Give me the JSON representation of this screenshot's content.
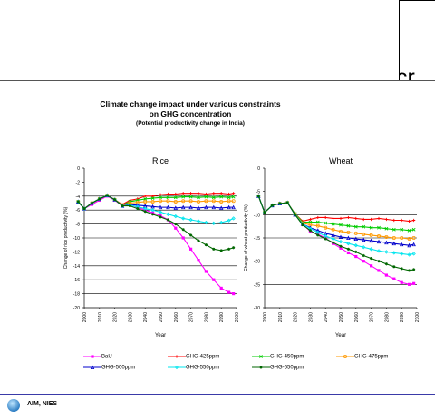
{
  "slide": {
    "title_line1": "Climate change impact under various constraints",
    "title_line2": "on GHG concentration",
    "subtitle": "(Potential productivity change in India)",
    "overlay_lines": [
      "cr",
      "c",
      "(A"
    ],
    "footer_text": "AIM, NIES"
  },
  "chart_data": [
    {
      "type": "line",
      "title": "Rice",
      "xlabel": "Year",
      "ylabel": "Change of rice productivity (%)",
      "xlim": [
        2000,
        2100
      ],
      "ylim": [
        -20,
        0
      ],
      "xticks": [
        "2000",
        "2010",
        "2020",
        "2030",
        "2040",
        "2050",
        "2060",
        "2070",
        "2080",
        "2090",
        "2100"
      ],
      "yticks": [
        "0",
        "-2",
        "-4",
        "-6",
        "-8",
        "-10",
        "-12",
        "-14",
        "-16",
        "-18",
        "-20"
      ],
      "gridlines": [
        -4,
        -6,
        -8,
        -10,
        -12,
        -14,
        -16,
        -18
      ],
      "x": [
        1996,
        2000,
        2005,
        2010,
        2015,
        2020,
        2025,
        2030,
        2035,
        2040,
        2045,
        2050,
        2055,
        2060,
        2065,
        2070,
        2075,
        2080,
        2085,
        2090,
        2095,
        2098
      ],
      "series": [
        {
          "name": "BaU",
          "color": "#ff00ff",
          "marker": "square",
          "values": [
            -4.8,
            -5.8,
            -5.2,
            -4.6,
            -4.0,
            -4.6,
            -5.4,
            -5.2,
            -5.6,
            -6.0,
            -6.4,
            -6.8,
            -7.4,
            -8.6,
            -10.0,
            -11.6,
            -13.2,
            -14.8,
            -16.0,
            -17.2,
            -17.8,
            -18.0
          ]
        },
        {
          "name": "GHG-425ppm",
          "color": "#ff0000",
          "marker": "plus",
          "values": [
            -4.8,
            -5.8,
            -5.0,
            -4.4,
            -3.9,
            -4.5,
            -5.2,
            -4.6,
            -4.4,
            -4.0,
            -4.0,
            -3.8,
            -3.7,
            -3.7,
            -3.6,
            -3.6,
            -3.6,
            -3.7,
            -3.6,
            -3.6,
            -3.7,
            -3.6
          ]
        },
        {
          "name": "GHG-450ppm",
          "color": "#00cc00",
          "marker": "x",
          "values": [
            -4.8,
            -5.8,
            -5.0,
            -4.4,
            -3.9,
            -4.5,
            -5.3,
            -4.8,
            -4.6,
            -4.4,
            -4.3,
            -4.2,
            -4.2,
            -4.2,
            -4.1,
            -4.1,
            -4.2,
            -4.1,
            -4.2,
            -4.1,
            -4.2,
            -4.1
          ]
        },
        {
          "name": "GHG-475ppm",
          "color": "#ff9900",
          "marker": "circle",
          "values": [
            -4.8,
            -5.8,
            -5.0,
            -4.4,
            -3.9,
            -4.5,
            -5.3,
            -5.0,
            -4.9,
            -4.8,
            -4.8,
            -4.7,
            -4.7,
            -4.8,
            -4.7,
            -4.7,
            -4.8,
            -4.7,
            -4.7,
            -4.8,
            -4.7,
            -4.7
          ]
        },
        {
          "name": "GHG-500ppm",
          "color": "#0000cc",
          "marker": "triangle",
          "values": [
            -4.8,
            -5.8,
            -5.0,
            -4.4,
            -3.9,
            -4.5,
            -5.4,
            -5.2,
            -5.3,
            -5.4,
            -5.5,
            -5.6,
            -5.6,
            -5.7,
            -5.6,
            -5.6,
            -5.7,
            -5.6,
            -5.6,
            -5.7,
            -5.6,
            -5.6
          ]
        },
        {
          "name": "GHG-550ppm",
          "color": "#00e5ee",
          "marker": "diamond",
          "values": [
            -4.8,
            -5.8,
            -5.0,
            -4.4,
            -3.9,
            -4.5,
            -5.4,
            -5.3,
            -5.5,
            -5.8,
            -6.0,
            -6.3,
            -6.6,
            -6.9,
            -7.2,
            -7.4,
            -7.6,
            -7.8,
            -7.9,
            -7.8,
            -7.5,
            -7.2
          ]
        },
        {
          "name": "GHG-650ppm",
          "color": "#006600",
          "marker": "asterisk",
          "values": [
            -4.8,
            -5.8,
            -5.0,
            -4.4,
            -3.9,
            -4.5,
            -5.4,
            -5.4,
            -5.8,
            -6.2,
            -6.6,
            -7.0,
            -7.4,
            -8.0,
            -8.8,
            -9.6,
            -10.4,
            -11.0,
            -11.6,
            -11.8,
            -11.6,
            -11.4
          ]
        }
      ]
    },
    {
      "type": "line",
      "title": "Wheat",
      "xlabel": "Year",
      "ylabel": "Change of wheat productivity (%)",
      "xlim": [
        2000,
        2100
      ],
      "ylim": [
        -30,
        0
      ],
      "xticks": [
        "2000",
        "2010",
        "2020",
        "2030",
        "2040",
        "2050",
        "2060",
        "2070",
        "2080",
        "2090",
        "2100"
      ],
      "yticks": [
        "0",
        "-5",
        "-10",
        "-15",
        "-20",
        "-25",
        "-30"
      ],
      "gridlines": [
        -10,
        -15,
        -20,
        -25
      ],
      "x": [
        1996,
        2000,
        2005,
        2010,
        2015,
        2020,
        2025,
        2030,
        2035,
        2040,
        2045,
        2050,
        2055,
        2060,
        2065,
        2070,
        2075,
        2080,
        2085,
        2090,
        2095,
        2098
      ],
      "series": [
        {
          "name": "BaU",
          "color": "#ff00ff",
          "marker": "square",
          "values": [
            -6.0,
            -9.5,
            -8.0,
            -7.6,
            -7.4,
            -10.0,
            -12.0,
            -13.6,
            -14.2,
            -15.0,
            -16.2,
            -17.2,
            -18.2,
            -19.0,
            -20.0,
            -21.0,
            -22.0,
            -23.0,
            -23.8,
            -24.6,
            -25.0,
            -24.8
          ]
        },
        {
          "name": "GHG-425ppm",
          "color": "#ff0000",
          "marker": "plus",
          "values": [
            -6.0,
            -9.5,
            -8.0,
            -7.6,
            -7.4,
            -9.8,
            -11.4,
            -11.0,
            -10.6,
            -10.6,
            -10.8,
            -10.8,
            -10.6,
            -10.8,
            -11.0,
            -11.0,
            -10.8,
            -11.0,
            -11.2,
            -11.2,
            -11.4,
            -11.2
          ]
        },
        {
          "name": "GHG-450ppm",
          "color": "#00cc00",
          "marker": "x",
          "values": [
            -6.0,
            -9.5,
            -8.0,
            -7.6,
            -7.4,
            -9.8,
            -11.6,
            -11.6,
            -11.6,
            -11.8,
            -12.0,
            -12.2,
            -12.4,
            -12.6,
            -12.6,
            -12.8,
            -12.8,
            -13.0,
            -13.2,
            -13.2,
            -13.4,
            -13.2
          ]
        },
        {
          "name": "GHG-475ppm",
          "color": "#ff9900",
          "marker": "circle",
          "values": [
            -6.0,
            -9.5,
            -8.0,
            -7.6,
            -7.4,
            -9.9,
            -11.8,
            -12.2,
            -12.4,
            -12.8,
            -13.2,
            -13.6,
            -13.8,
            -14.0,
            -14.2,
            -14.4,
            -14.6,
            -14.8,
            -15.0,
            -15.0,
            -15.2,
            -15.0
          ]
        },
        {
          "name": "GHG-500ppm",
          "color": "#0000cc",
          "marker": "triangle",
          "values": [
            -6.0,
            -9.5,
            -8.0,
            -7.6,
            -7.4,
            -10.0,
            -12.0,
            -12.8,
            -13.4,
            -14.0,
            -14.4,
            -14.8,
            -15.0,
            -15.2,
            -15.4,
            -15.6,
            -15.8,
            -16.0,
            -16.2,
            -16.4,
            -16.6,
            -16.4
          ]
        },
        {
          "name": "GHG-550ppm",
          "color": "#00e5ee",
          "marker": "diamond",
          "values": [
            -6.0,
            -9.5,
            -8.0,
            -7.6,
            -7.4,
            -10.0,
            -12.0,
            -13.0,
            -13.8,
            -14.6,
            -15.2,
            -15.8,
            -16.2,
            -16.6,
            -17.0,
            -17.4,
            -17.8,
            -18.0,
            -18.2,
            -18.4,
            -18.6,
            -18.4
          ]
        },
        {
          "name": "GHG-650ppm",
          "color": "#006600",
          "marker": "asterisk",
          "values": [
            -6.0,
            -9.5,
            -8.0,
            -7.6,
            -7.4,
            -10.0,
            -12.2,
            -13.4,
            -14.4,
            -15.2,
            -16.0,
            -16.8,
            -17.4,
            -18.0,
            -18.8,
            -19.4,
            -20.0,
            -20.6,
            -21.2,
            -21.6,
            -22.0,
            -21.8
          ]
        }
      ]
    }
  ]
}
